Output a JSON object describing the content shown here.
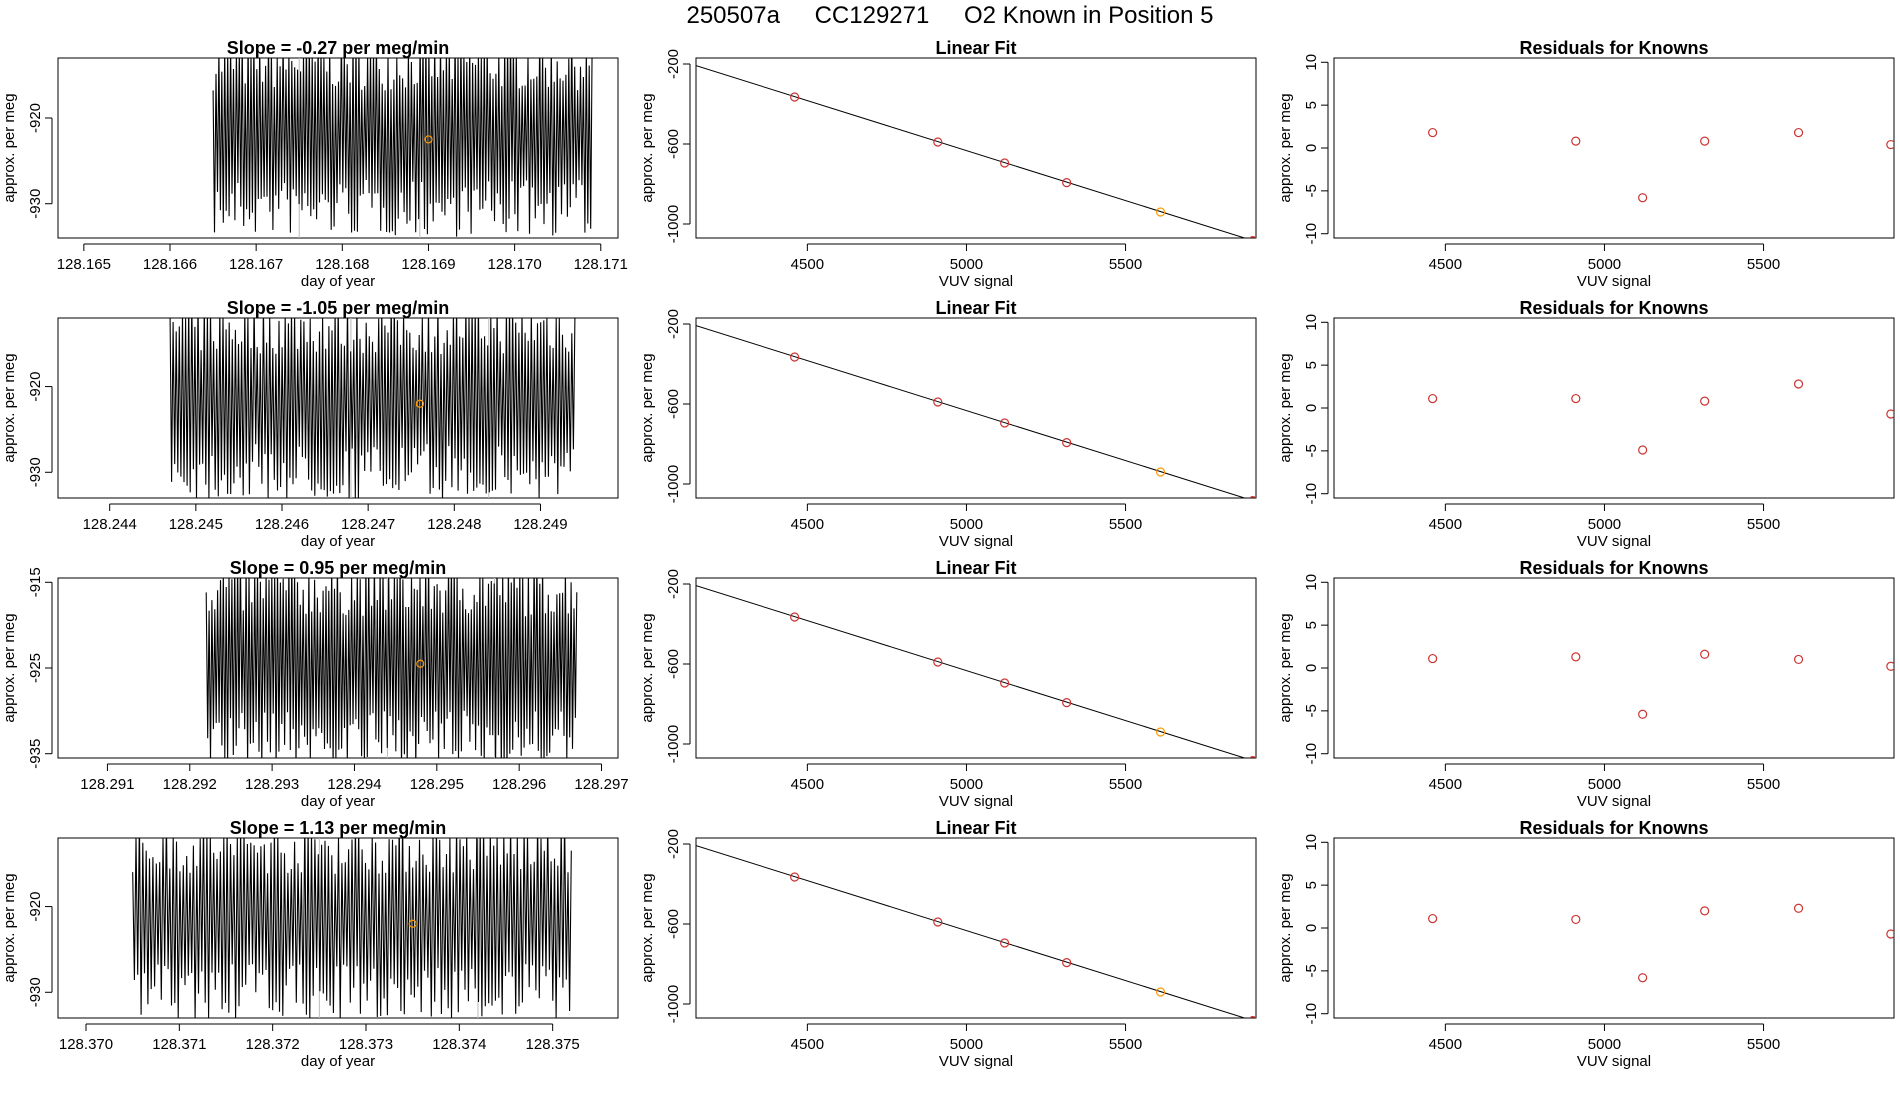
{
  "header": {
    "run_id": "250507a",
    "cylinder": "CC129271",
    "description": "O2 Known in Position  5"
  },
  "colors": {
    "timeseries_line": "#000000",
    "known_point": "#FF9900",
    "fit_point": "#CC3333",
    "fit_line": "#000000",
    "marker_line": "#BBBBBB"
  },
  "chart_data": [
    {
      "type": "line",
      "row": 0,
      "col": 0,
      "title": "Slope =  -0.27  per meg/min",
      "xlabel": "day of year",
      "ylabel": "approx. per meg",
      "xlim": [
        128.1647,
        128.1712
      ],
      "ylim": [
        -934,
        -913
      ],
      "xticks": [
        128.165,
        128.166,
        128.167,
        128.168,
        128.169,
        128.17,
        128.171
      ],
      "xtick_labels": [
        "128.165",
        "128.166",
        "128.167",
        "128.168",
        "128.169",
        "128.170",
        "128.171"
      ],
      "yticks": [
        -920,
        -930
      ],
      "ytick_labels": [
        "-920",
        "-930"
      ],
      "series": {
        "x_start": 128.1665,
        "x_end": 128.1709,
        "center": -922,
        "amplitude": 9.5
      },
      "marker_x": [
        128.1675,
        128.1689
      ],
      "highlight": {
        "x": 128.169,
        "y": -922.5
      }
    },
    {
      "type": "line",
      "row": 1,
      "col": 0,
      "title": "Slope =  -1.05  per meg/min",
      "xlabel": "day of year",
      "ylabel": "approx. per meg",
      "xlim": [
        128.2434,
        128.2499
      ],
      "ylim": [
        -933,
        -912
      ],
      "xticks": [
        128.244,
        128.245,
        128.246,
        128.247,
        128.248,
        128.249
      ],
      "xtick_labels": [
        "128.244",
        "128.245",
        "128.246",
        "128.247",
        "128.248",
        "128.249"
      ],
      "yticks": [
        -920,
        -930
      ],
      "ytick_labels": [
        "-920",
        "-930"
      ],
      "series": {
        "x_start": 128.2447,
        "x_end": 128.2494,
        "center": -921.5,
        "amplitude": 9.5
      },
      "marker_x": [
        128.2468,
        128.2484
      ],
      "highlight": {
        "x": 128.2476,
        "y": -922
      }
    },
    {
      "type": "line",
      "row": 2,
      "col": 0,
      "title": "Slope =  0.95  per meg/min",
      "xlabel": "day of year",
      "ylabel": "approx. per meg",
      "xlim": [
        128.2904,
        128.2972
      ],
      "ylim": [
        -935.5,
        -914.5
      ],
      "xticks": [
        128.291,
        128.292,
        128.293,
        128.294,
        128.295,
        128.296,
        128.297
      ],
      "xtick_labels": [
        "128.291",
        "128.292",
        "128.293",
        "128.294",
        "128.295",
        "128.296",
        "128.297"
      ],
      "yticks": [
        -915,
        -925,
        -935
      ],
      "ytick_labels": [
        "-915",
        "-925",
        "-935"
      ],
      "series": {
        "x_start": 128.2922,
        "x_end": 128.2967,
        "center": -924.5,
        "amplitude": 10
      },
      "marker_x": [
        128.2944,
        128.2957
      ],
      "highlight": {
        "x": 128.2948,
        "y": -924.5
      }
    },
    {
      "type": "line",
      "row": 3,
      "col": 0,
      "title": "Slope =  1.13  per meg/min",
      "xlabel": "day of year",
      "ylabel": "approx. per meg",
      "xlim": [
        128.3697,
        128.3757
      ],
      "ylim": [
        -933,
        -912
      ],
      "xticks": [
        128.37,
        128.371,
        128.372,
        128.373,
        128.374,
        128.375
      ],
      "xtick_labels": [
        "128.370",
        "128.371",
        "128.372",
        "128.373",
        "128.374",
        "128.375"
      ],
      "yticks": [
        -920,
        -930
      ],
      "ytick_labels": [
        "-920",
        "-930"
      ],
      "series": {
        "x_start": 128.3705,
        "x_end": 128.3752,
        "center": -921.5,
        "amplitude": 9.5
      },
      "marker_x": [
        128.3725,
        128.3742
      ],
      "highlight": {
        "x": 128.3735,
        "y": -922
      }
    },
    {
      "type": "scatter",
      "row": 0,
      "col": 1,
      "title": "Linear Fit",
      "xlabel": "VUV signal",
      "ylabel": "approx. per meg",
      "xlim": [
        4150,
        5910
      ],
      "ylim": [
        -1070,
        -170
      ],
      "xticks": [
        4500,
        5000,
        5500
      ],
      "xtick_labels": [
        "4500",
        "5000",
        "5500"
      ],
      "yticks": [
        -200,
        -600,
        -1000
      ],
      "ytick_labels": [
        "-200",
        "-600",
        "-1000"
      ],
      "fit_line": {
        "x": [
          4150,
          5900
        ],
        "y": [
          -208,
          -1083
        ]
      },
      "points": {
        "x": [
          4460,
          4910,
          5120,
          5315,
          5610,
          5900
        ],
        "y": [
          -365,
          -590,
          -695,
          -793,
          -940,
          -1083
        ]
      },
      "known_index": 4
    },
    {
      "type": "scatter",
      "row": 1,
      "col": 1,
      "title": "Linear Fit",
      "xlabel": "VUV signal",
      "ylabel": "approx. per meg",
      "xlim": [
        4150,
        5910
      ],
      "ylim": [
        -1070,
        -170
      ],
      "xticks": [
        4500,
        5000,
        5500
      ],
      "xtick_labels": [
        "4500",
        "5000",
        "5500"
      ],
      "yticks": [
        -200,
        -600,
        -1000
      ],
      "ytick_labels": [
        "-200",
        "-600",
        "-1000"
      ],
      "fit_line": {
        "x": [
          4150,
          5900
        ],
        "y": [
          -208,
          -1083
        ]
      },
      "points": {
        "x": [
          4460,
          4910,
          5120,
          5315,
          5610,
          5900
        ],
        "y": [
          -365,
          -590,
          -695,
          -793,
          -940,
          -1083
        ]
      },
      "known_index": 4
    },
    {
      "type": "scatter",
      "row": 2,
      "col": 1,
      "title": "Linear Fit",
      "xlabel": "VUV signal",
      "ylabel": "approx. per meg",
      "xlim": [
        4150,
        5910
      ],
      "ylim": [
        -1070,
        -170
      ],
      "xticks": [
        4500,
        5000,
        5500
      ],
      "xtick_labels": [
        "4500",
        "5000",
        "5500"
      ],
      "yticks": [
        -200,
        -600,
        -1000
      ],
      "ytick_labels": [
        "-200",
        "-600",
        "-1000"
      ],
      "fit_line": {
        "x": [
          4150,
          5900
        ],
        "y": [
          -208,
          -1083
        ]
      },
      "points": {
        "x": [
          4460,
          4910,
          5120,
          5315,
          5610,
          5900
        ],
        "y": [
          -365,
          -590,
          -695,
          -793,
          -940,
          -1083
        ]
      },
      "known_index": 4
    },
    {
      "type": "scatter",
      "row": 3,
      "col": 1,
      "title": "Linear Fit",
      "xlabel": "VUV signal",
      "ylabel": "approx. per meg",
      "xlim": [
        4150,
        5910
      ],
      "ylim": [
        -1070,
        -170
      ],
      "xticks": [
        4500,
        5000,
        5500
      ],
      "xtick_labels": [
        "4500",
        "5000",
        "5500"
      ],
      "yticks": [
        -200,
        -600,
        -1000
      ],
      "ytick_labels": [
        "-200",
        "-600",
        "-1000"
      ],
      "fit_line": {
        "x": [
          4150,
          5900
        ],
        "y": [
          -208,
          -1083
        ]
      },
      "points": {
        "x": [
          4460,
          4910,
          5120,
          5315,
          5610,
          5900
        ],
        "y": [
          -365,
          -590,
          -695,
          -793,
          -940,
          -1083
        ]
      },
      "known_index": 4
    },
    {
      "type": "scatter",
      "row": 0,
      "col": 2,
      "title": "Residuals for Knowns",
      "xlabel": "VUV signal",
      "ylabel": "approx. per meg",
      "xlim": [
        4150,
        5910
      ],
      "ylim": [
        -10.5,
        10.5
      ],
      "xticks": [
        4500,
        5000,
        5500
      ],
      "xtick_labels": [
        "4500",
        "5000",
        "5500"
      ],
      "yticks": [
        10,
        5,
        0,
        -5,
        -10
      ],
      "ytick_labels": [
        "10",
        "5",
        "0",
        "-5",
        "-10"
      ],
      "points": {
        "x": [
          4460,
          4910,
          5120,
          5315,
          5610,
          5900
        ],
        "y": [
          1.8,
          0.8,
          -5.8,
          0.8,
          1.8,
          0.4
        ]
      }
    },
    {
      "type": "scatter",
      "row": 1,
      "col": 2,
      "title": "Residuals for Knowns",
      "xlabel": "VUV signal",
      "ylabel": "approx. per meg",
      "xlim": [
        4150,
        5910
      ],
      "ylim": [
        -10.5,
        10.5
      ],
      "xticks": [
        4500,
        5000,
        5500
      ],
      "xtick_labels": [
        "4500",
        "5000",
        "5500"
      ],
      "yticks": [
        10,
        5,
        0,
        -5,
        -10
      ],
      "ytick_labels": [
        "10",
        "5",
        "0",
        "-5",
        "-10"
      ],
      "points": {
        "x": [
          4460,
          4910,
          5120,
          5315,
          5610,
          5900
        ],
        "y": [
          1.1,
          1.1,
          -4.9,
          0.8,
          2.8,
          -0.7
        ]
      }
    },
    {
      "type": "scatter",
      "row": 2,
      "col": 2,
      "title": "Residuals for Knowns",
      "xlabel": "VUV signal",
      "ylabel": "approx. per meg",
      "xlim": [
        4150,
        5910
      ],
      "ylim": [
        -10.5,
        10.5
      ],
      "xticks": [
        4500,
        5000,
        5500
      ],
      "xtick_labels": [
        "4500",
        "5000",
        "5500"
      ],
      "yticks": [
        10,
        5,
        0,
        -5,
        -10
      ],
      "ytick_labels": [
        "10",
        "5",
        "0",
        "-5",
        "-10"
      ],
      "points": {
        "x": [
          4460,
          4910,
          5120,
          5315,
          5610,
          5900
        ],
        "y": [
          1.1,
          1.3,
          -5.4,
          1.6,
          1.0,
          0.2
        ]
      }
    },
    {
      "type": "scatter",
      "row": 3,
      "col": 2,
      "title": "Residuals for Knowns",
      "xlabel": "VUV signal",
      "ylabel": "approx. per meg",
      "xlim": [
        4150,
        5910
      ],
      "ylim": [
        -10.5,
        10.5
      ],
      "xticks": [
        4500,
        5000,
        5500
      ],
      "xtick_labels": [
        "4500",
        "5000",
        "5500"
      ],
      "yticks": [
        10,
        5,
        0,
        -5,
        -10
      ],
      "ytick_labels": [
        "10",
        "5",
        "0",
        "-5",
        "-10"
      ],
      "points": {
        "x": [
          4460,
          4910,
          5120,
          5315,
          5610,
          5900
        ],
        "y": [
          1.1,
          1.0,
          -5.8,
          2.0,
          2.3,
          -0.7
        ]
      }
    }
  ]
}
